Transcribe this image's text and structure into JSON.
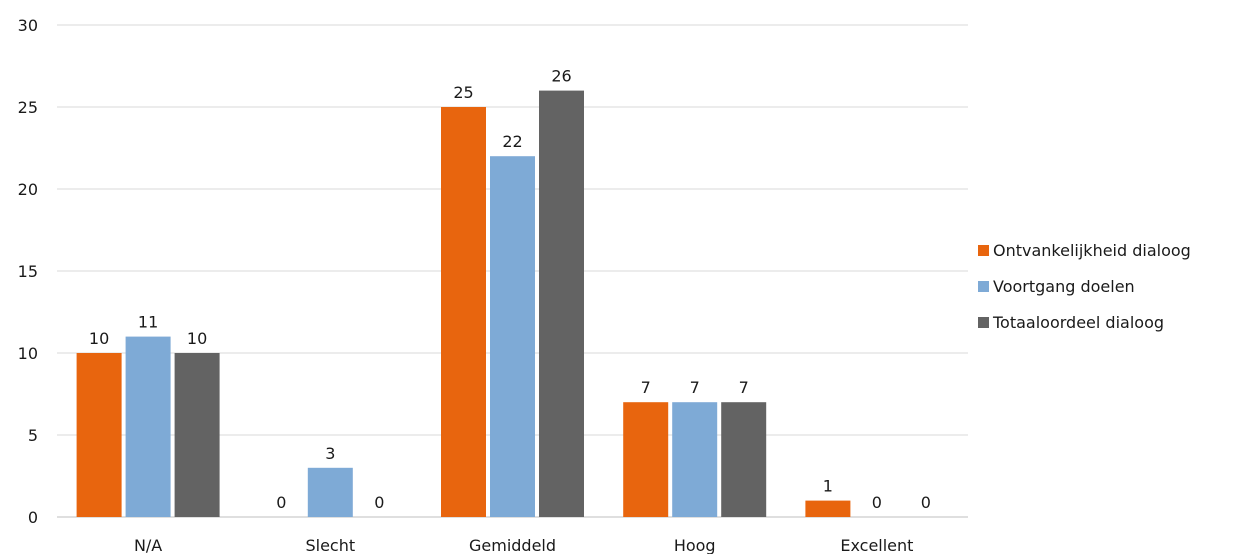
{
  "chart_data": {
    "type": "bar",
    "categories": [
      "N/A",
      "Slecht",
      "Gemiddeld",
      "Hoog",
      "Excellent"
    ],
    "series": [
      {
        "name": "Ontvankelijkheid dialoog",
        "values": [
          10,
          0,
          25,
          7,
          1
        ],
        "color": "#e8650e"
      },
      {
        "name": "Voortgang doelen",
        "values": [
          11,
          3,
          22,
          7,
          0
        ],
        "color": "#7eaad6"
      },
      {
        "name": "Totaaloordeel dialoog",
        "values": [
          10,
          0,
          26,
          7,
          0
        ],
        "color": "#636363"
      }
    ],
    "ylim": [
      0,
      30
    ],
    "yticks": [
      0,
      5,
      10,
      15,
      20,
      25,
      30
    ],
    "grid": true,
    "legend_position": "right",
    "data_labels": true,
    "title": "",
    "xlabel": "",
    "ylabel": ""
  }
}
